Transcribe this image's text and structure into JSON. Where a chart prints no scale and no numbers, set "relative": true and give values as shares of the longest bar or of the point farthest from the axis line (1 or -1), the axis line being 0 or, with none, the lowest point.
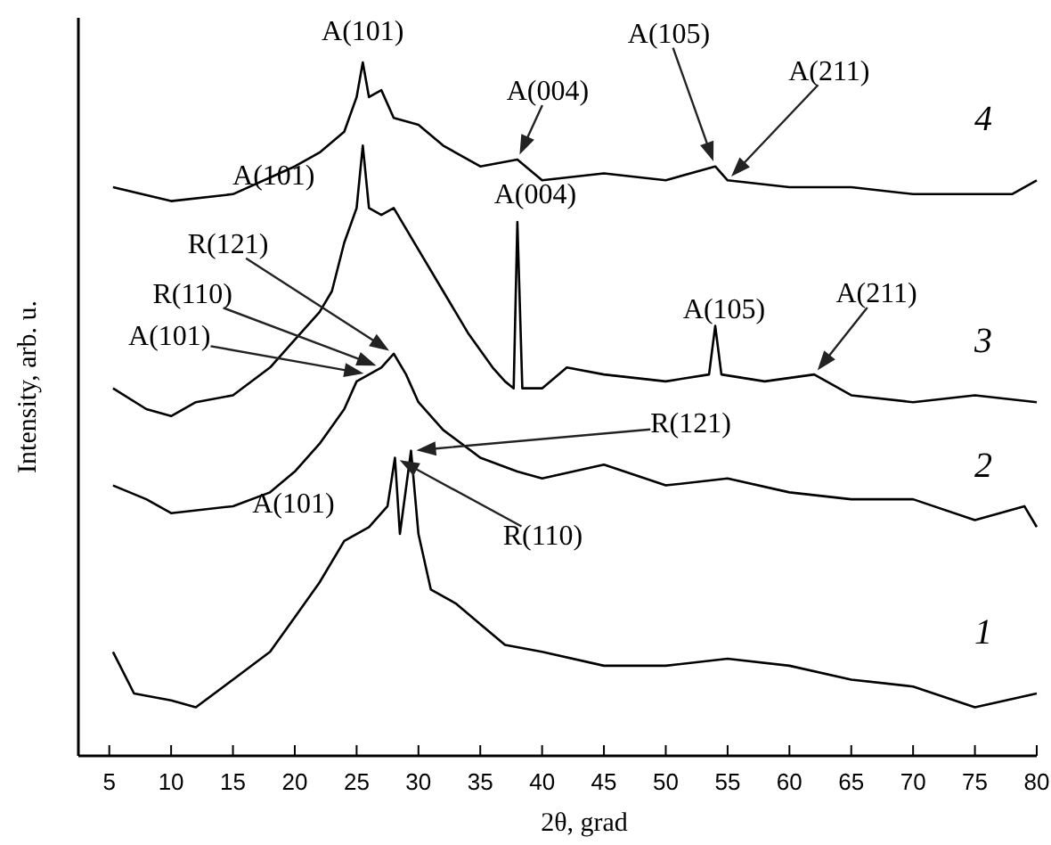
{
  "chart_data": {
    "type": "line",
    "relative": true,
    "xlabel": "2θ, grad",
    "ylabel": "Intensity, arb. u.",
    "xlim": [
      2.5,
      80
    ],
    "xticks": [
      5,
      10,
      15,
      20,
      25,
      30,
      35,
      40,
      45,
      50,
      55,
      60,
      65,
      70,
      75,
      80
    ],
    "series": [
      {
        "name": "1",
        "color": "#000000",
        "x": [
          5.3,
          7,
          10,
          12,
          15,
          18,
          20,
          22,
          24,
          26,
          27.5,
          28.1,
          28.5,
          29.4,
          30,
          31,
          33,
          35,
          37,
          40,
          45,
          50,
          55,
          60,
          65,
          70,
          75,
          80
        ],
        "values": [
          0.15,
          0.09,
          0.08,
          0.07,
          0.11,
          0.15,
          0.2,
          0.25,
          0.31,
          0.33,
          0.36,
          0.43,
          0.32,
          0.44,
          0.32,
          0.24,
          0.22,
          0.19,
          0.16,
          0.15,
          0.13,
          0.13,
          0.14,
          0.13,
          0.11,
          0.1,
          0.07,
          0.09
        ]
      },
      {
        "name": "2",
        "color": "#000000",
        "x": [
          5.3,
          8,
          10,
          15,
          18,
          20,
          22,
          24,
          25,
          26,
          27,
          28,
          29,
          30,
          32,
          35,
          38,
          40,
          45,
          50,
          55,
          60,
          65,
          70,
          75,
          79,
          80
        ],
        "values": [
          0.39,
          0.37,
          0.35,
          0.36,
          0.38,
          0.41,
          0.45,
          0.5,
          0.54,
          0.55,
          0.56,
          0.58,
          0.55,
          0.51,
          0.47,
          0.43,
          0.41,
          0.4,
          0.42,
          0.39,
          0.4,
          0.38,
          0.37,
          0.37,
          0.34,
          0.36,
          0.33
        ]
      },
      {
        "name": "3",
        "color": "#000000",
        "x": [
          5.3,
          8,
          10,
          12,
          15,
          18,
          20,
          22,
          23,
          24,
          25,
          25.5,
          26,
          27,
          28,
          30,
          32,
          34,
          36,
          37,
          37.7,
          38,
          38.4,
          40,
          42,
          45,
          50,
          53.5,
          54,
          54.5,
          58,
          62,
          65,
          70,
          75,
          80
        ],
        "values": [
          0.53,
          0.5,
          0.49,
          0.51,
          0.52,
          0.56,
          0.6,
          0.64,
          0.67,
          0.74,
          0.79,
          0.88,
          0.79,
          0.78,
          0.79,
          0.73,
          0.67,
          0.61,
          0.56,
          0.54,
          0.53,
          0.77,
          0.53,
          0.53,
          0.56,
          0.55,
          0.54,
          0.55,
          0.62,
          0.55,
          0.54,
          0.55,
          0.52,
          0.51,
          0.52,
          0.51
        ]
      },
      {
        "name": "4",
        "color": "#000000",
        "x": [
          5.3,
          10,
          15,
          20,
          22,
          24,
          25,
          25.5,
          26,
          27,
          28,
          30,
          32,
          35,
          38,
          40,
          45,
          50,
          54,
          55,
          60,
          65,
          70,
          75,
          78,
          80
        ],
        "values": [
          0.82,
          0.8,
          0.81,
          0.85,
          0.87,
          0.9,
          0.95,
          1.0,
          0.95,
          0.96,
          0.92,
          0.91,
          0.88,
          0.85,
          0.86,
          0.83,
          0.84,
          0.83,
          0.85,
          0.83,
          0.82,
          0.82,
          0.81,
          0.81,
          0.81,
          0.83
        ]
      }
    ],
    "annotations": [
      {
        "text": "A(101)",
        "x": 25.5,
        "y": 1.0
      },
      {
        "text": "A(004)",
        "x": 38,
        "y": 0.86
      },
      "A(105)",
      "A(211)",
      {
        "text": "A(101)",
        "x": 25.5,
        "y": 0.88
      },
      {
        "text": "A(004)",
        "x": 38,
        "y": 0.77
      },
      {
        "text": "A(105)",
        "x": 54,
        "y": 0.62
      },
      {
        "text": "A(211)",
        "x": 62,
        "y": 0.55
      },
      "R(121)",
      "R(110)",
      "A(101)",
      "R(121)",
      "R(110)",
      {
        "text": "A(101)",
        "x": 28.1,
        "y": 0.43
      }
    ]
  }
}
